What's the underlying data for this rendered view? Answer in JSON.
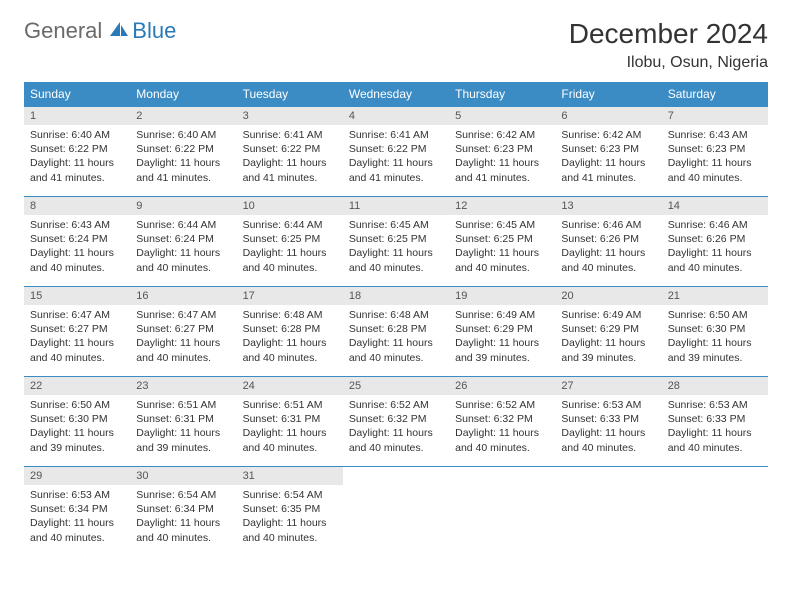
{
  "logo": {
    "part1": "General",
    "part2": "Blue"
  },
  "title": "December 2024",
  "location": "Ilobu, Osun, Nigeria",
  "colors": {
    "header_bg": "#3b8bc4",
    "header_text": "#ffffff",
    "daynum_bg": "#e8e8e8",
    "border": "#3b8bc4",
    "logo_gray": "#6a6a6a",
    "logo_blue": "#2a7ab8"
  },
  "weekdays": [
    "Sunday",
    "Monday",
    "Tuesday",
    "Wednesday",
    "Thursday",
    "Friday",
    "Saturday"
  ],
  "days": [
    {
      "n": "1",
      "sunrise": "Sunrise: 6:40 AM",
      "sunset": "Sunset: 6:22 PM",
      "daylight": "Daylight: 11 hours and 41 minutes."
    },
    {
      "n": "2",
      "sunrise": "Sunrise: 6:40 AM",
      "sunset": "Sunset: 6:22 PM",
      "daylight": "Daylight: 11 hours and 41 minutes."
    },
    {
      "n": "3",
      "sunrise": "Sunrise: 6:41 AM",
      "sunset": "Sunset: 6:22 PM",
      "daylight": "Daylight: 11 hours and 41 minutes."
    },
    {
      "n": "4",
      "sunrise": "Sunrise: 6:41 AM",
      "sunset": "Sunset: 6:22 PM",
      "daylight": "Daylight: 11 hours and 41 minutes."
    },
    {
      "n": "5",
      "sunrise": "Sunrise: 6:42 AM",
      "sunset": "Sunset: 6:23 PM",
      "daylight": "Daylight: 11 hours and 41 minutes."
    },
    {
      "n": "6",
      "sunrise": "Sunrise: 6:42 AM",
      "sunset": "Sunset: 6:23 PM",
      "daylight": "Daylight: 11 hours and 41 minutes."
    },
    {
      "n": "7",
      "sunrise": "Sunrise: 6:43 AM",
      "sunset": "Sunset: 6:23 PM",
      "daylight": "Daylight: 11 hours and 40 minutes."
    },
    {
      "n": "8",
      "sunrise": "Sunrise: 6:43 AM",
      "sunset": "Sunset: 6:24 PM",
      "daylight": "Daylight: 11 hours and 40 minutes."
    },
    {
      "n": "9",
      "sunrise": "Sunrise: 6:44 AM",
      "sunset": "Sunset: 6:24 PM",
      "daylight": "Daylight: 11 hours and 40 minutes."
    },
    {
      "n": "10",
      "sunrise": "Sunrise: 6:44 AM",
      "sunset": "Sunset: 6:25 PM",
      "daylight": "Daylight: 11 hours and 40 minutes."
    },
    {
      "n": "11",
      "sunrise": "Sunrise: 6:45 AM",
      "sunset": "Sunset: 6:25 PM",
      "daylight": "Daylight: 11 hours and 40 minutes."
    },
    {
      "n": "12",
      "sunrise": "Sunrise: 6:45 AM",
      "sunset": "Sunset: 6:25 PM",
      "daylight": "Daylight: 11 hours and 40 minutes."
    },
    {
      "n": "13",
      "sunrise": "Sunrise: 6:46 AM",
      "sunset": "Sunset: 6:26 PM",
      "daylight": "Daylight: 11 hours and 40 minutes."
    },
    {
      "n": "14",
      "sunrise": "Sunrise: 6:46 AM",
      "sunset": "Sunset: 6:26 PM",
      "daylight": "Daylight: 11 hours and 40 minutes."
    },
    {
      "n": "15",
      "sunrise": "Sunrise: 6:47 AM",
      "sunset": "Sunset: 6:27 PM",
      "daylight": "Daylight: 11 hours and 40 minutes."
    },
    {
      "n": "16",
      "sunrise": "Sunrise: 6:47 AM",
      "sunset": "Sunset: 6:27 PM",
      "daylight": "Daylight: 11 hours and 40 minutes."
    },
    {
      "n": "17",
      "sunrise": "Sunrise: 6:48 AM",
      "sunset": "Sunset: 6:28 PM",
      "daylight": "Daylight: 11 hours and 40 minutes."
    },
    {
      "n": "18",
      "sunrise": "Sunrise: 6:48 AM",
      "sunset": "Sunset: 6:28 PM",
      "daylight": "Daylight: 11 hours and 40 minutes."
    },
    {
      "n": "19",
      "sunrise": "Sunrise: 6:49 AM",
      "sunset": "Sunset: 6:29 PM",
      "daylight": "Daylight: 11 hours and 39 minutes."
    },
    {
      "n": "20",
      "sunrise": "Sunrise: 6:49 AM",
      "sunset": "Sunset: 6:29 PM",
      "daylight": "Daylight: 11 hours and 39 minutes."
    },
    {
      "n": "21",
      "sunrise": "Sunrise: 6:50 AM",
      "sunset": "Sunset: 6:30 PM",
      "daylight": "Daylight: 11 hours and 39 minutes."
    },
    {
      "n": "22",
      "sunrise": "Sunrise: 6:50 AM",
      "sunset": "Sunset: 6:30 PM",
      "daylight": "Daylight: 11 hours and 39 minutes."
    },
    {
      "n": "23",
      "sunrise": "Sunrise: 6:51 AM",
      "sunset": "Sunset: 6:31 PM",
      "daylight": "Daylight: 11 hours and 39 minutes."
    },
    {
      "n": "24",
      "sunrise": "Sunrise: 6:51 AM",
      "sunset": "Sunset: 6:31 PM",
      "daylight": "Daylight: 11 hours and 40 minutes."
    },
    {
      "n": "25",
      "sunrise": "Sunrise: 6:52 AM",
      "sunset": "Sunset: 6:32 PM",
      "daylight": "Daylight: 11 hours and 40 minutes."
    },
    {
      "n": "26",
      "sunrise": "Sunrise: 6:52 AM",
      "sunset": "Sunset: 6:32 PM",
      "daylight": "Daylight: 11 hours and 40 minutes."
    },
    {
      "n": "27",
      "sunrise": "Sunrise: 6:53 AM",
      "sunset": "Sunset: 6:33 PM",
      "daylight": "Daylight: 11 hours and 40 minutes."
    },
    {
      "n": "28",
      "sunrise": "Sunrise: 6:53 AM",
      "sunset": "Sunset: 6:33 PM",
      "daylight": "Daylight: 11 hours and 40 minutes."
    },
    {
      "n": "29",
      "sunrise": "Sunrise: 6:53 AM",
      "sunset": "Sunset: 6:34 PM",
      "daylight": "Daylight: 11 hours and 40 minutes."
    },
    {
      "n": "30",
      "sunrise": "Sunrise: 6:54 AM",
      "sunset": "Sunset: 6:34 PM",
      "daylight": "Daylight: 11 hours and 40 minutes."
    },
    {
      "n": "31",
      "sunrise": "Sunrise: 6:54 AM",
      "sunset": "Sunset: 6:35 PM",
      "daylight": "Daylight: 11 hours and 40 minutes."
    }
  ],
  "layout": {
    "start_weekday": 0,
    "total_cells": 35
  }
}
